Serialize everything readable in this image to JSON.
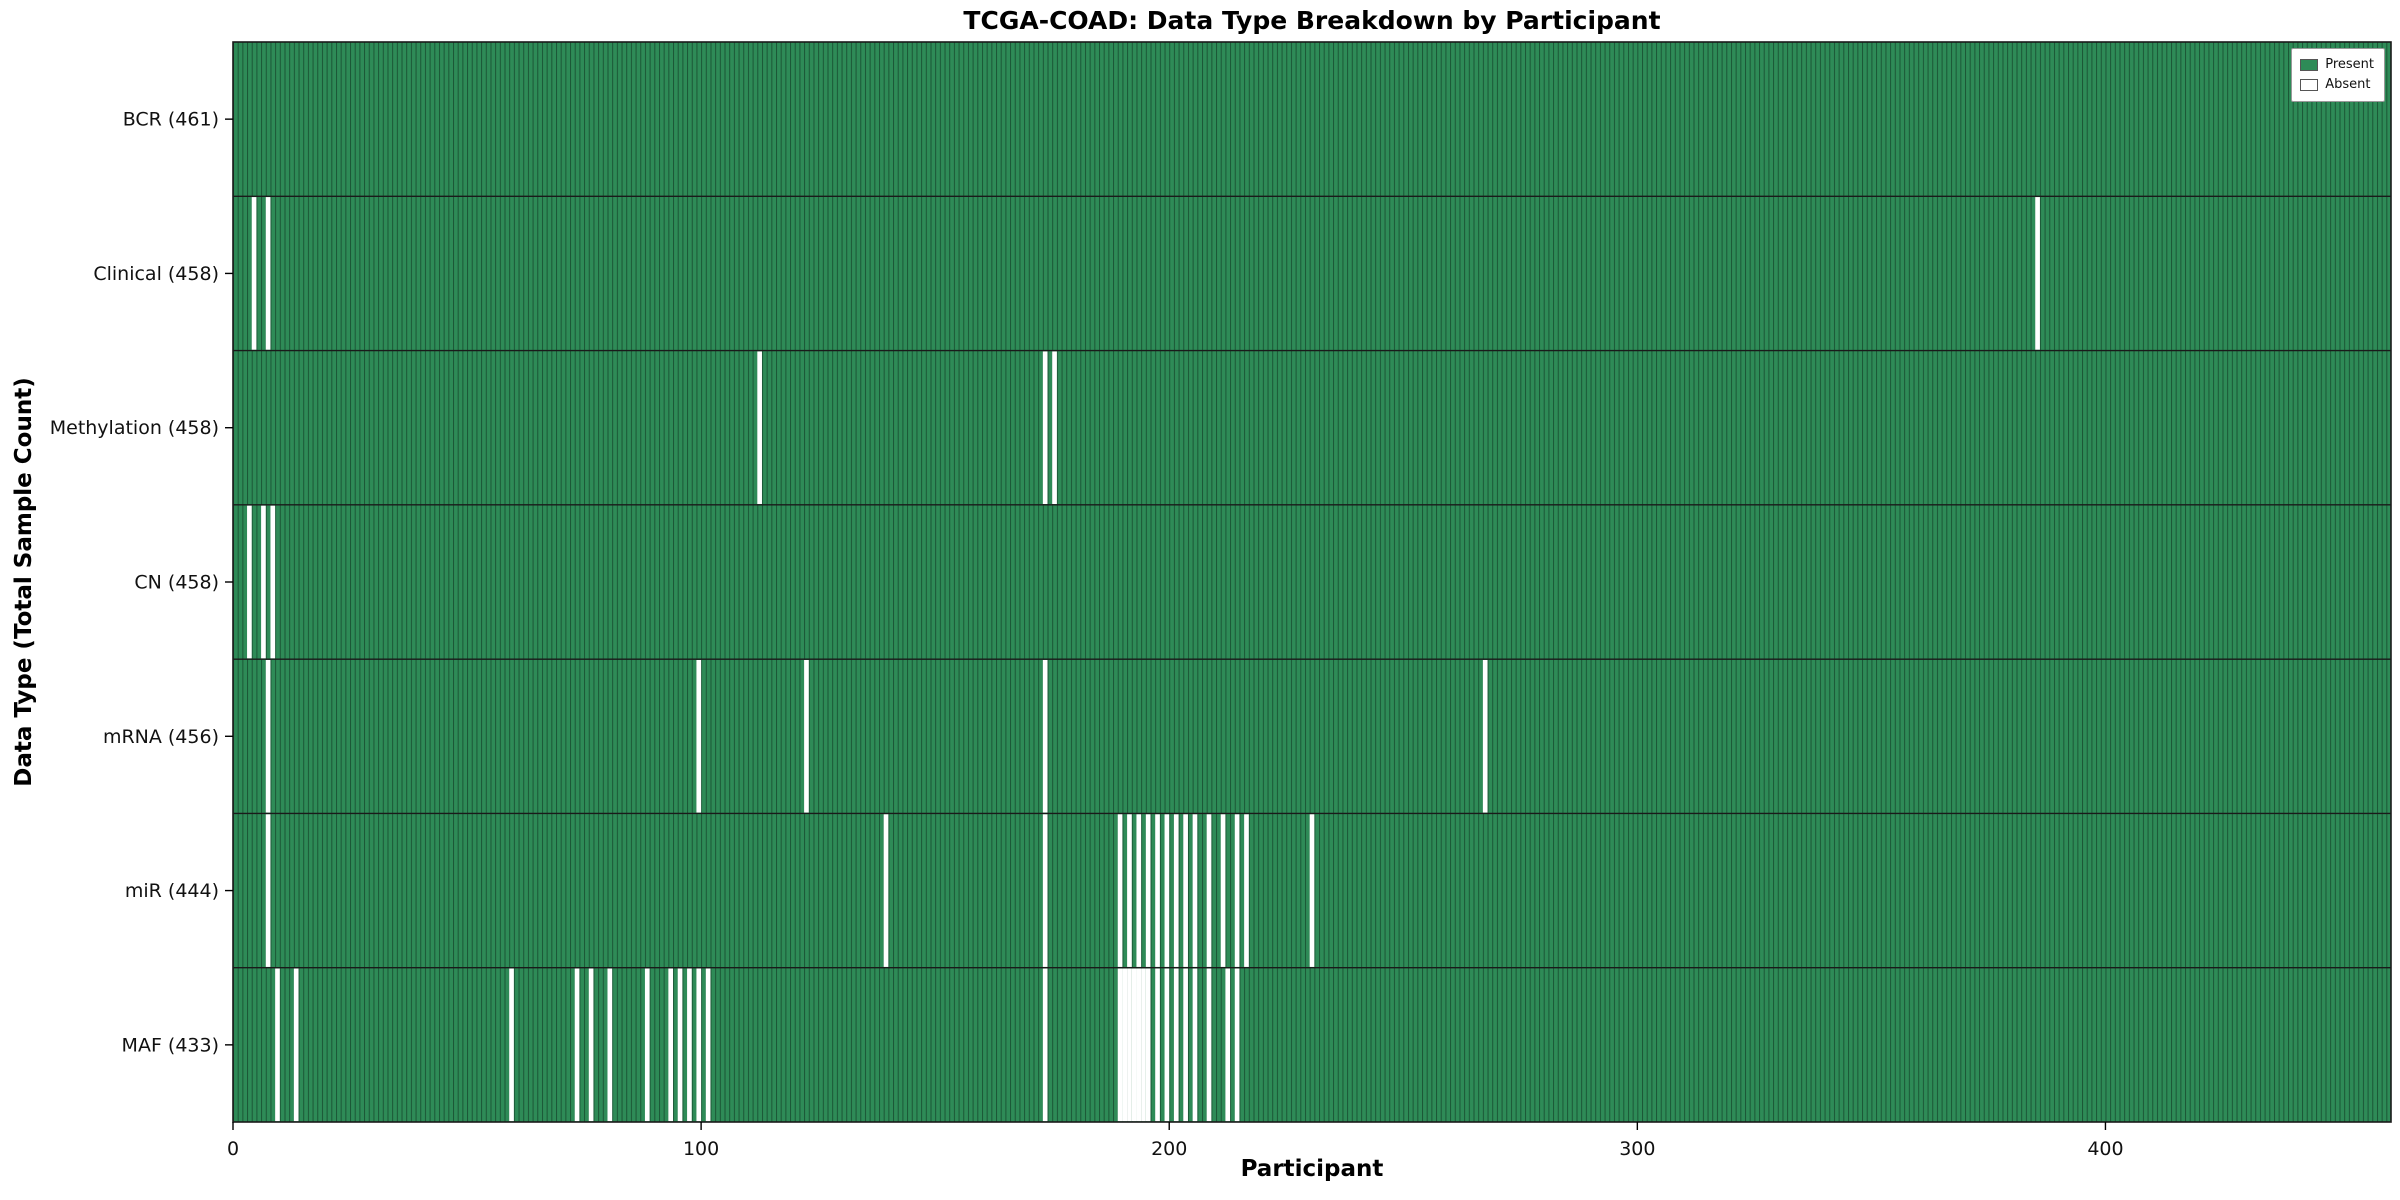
{
  "chart_data": {
    "type": "heatmap",
    "title": "TCGA-COAD: Data Type Breakdown by Participant",
    "xlabel": "Participant",
    "ylabel": "Data Type (Total Sample Count)",
    "x_ticks": [
      0,
      100,
      200,
      300,
      400
    ],
    "x_max": 461,
    "total_participants": 461,
    "legend": {
      "present_label": "Present",
      "absent_label": "Absent"
    },
    "colors": {
      "present": "#2e8b57",
      "absent": "#ffffff",
      "bar_edge": "#17482e",
      "row_divider": "#1a1a1a",
      "axes_border": "#1a1a1a",
      "tick": "#000000",
      "text": "#111111"
    },
    "rows": [
      {
        "name": "BCR",
        "label": "BCR (461)",
        "present_count": 461,
        "absent_participants": []
      },
      {
        "name": "Clinical",
        "label": "Clinical (458)",
        "present_count": 458,
        "absent_participants": [
          4,
          7,
          385
        ]
      },
      {
        "name": "Methylation",
        "label": "Methylation (458)",
        "present_count": 458,
        "absent_participants": [
          112,
          173,
          175
        ]
      },
      {
        "name": "CN",
        "label": "CN (458)",
        "present_count": 458,
        "absent_participants": [
          3,
          6,
          8
        ]
      },
      {
        "name": "mRNA",
        "label": "mRNA (456)",
        "present_count": 456,
        "absent_participants": [
          7,
          99,
          122,
          173,
          267
        ]
      },
      {
        "name": "miR",
        "label": "miR (444)",
        "present_count": 444,
        "absent_participants": [
          7,
          139,
          173,
          189,
          191,
          193,
          195,
          197,
          199,
          201,
          203,
          205,
          208,
          211,
          214,
          216,
          230
        ]
      },
      {
        "name": "MAF",
        "label": "MAF (433)",
        "present_count": 433,
        "absent_participants": [
          9,
          13,
          59,
          73,
          76,
          80,
          88,
          93,
          95,
          97,
          99,
          101,
          173,
          189,
          190,
          191,
          192,
          193,
          194,
          195,
          197,
          199,
          201,
          203,
          205,
          208,
          212,
          214
        ]
      }
    ]
  }
}
